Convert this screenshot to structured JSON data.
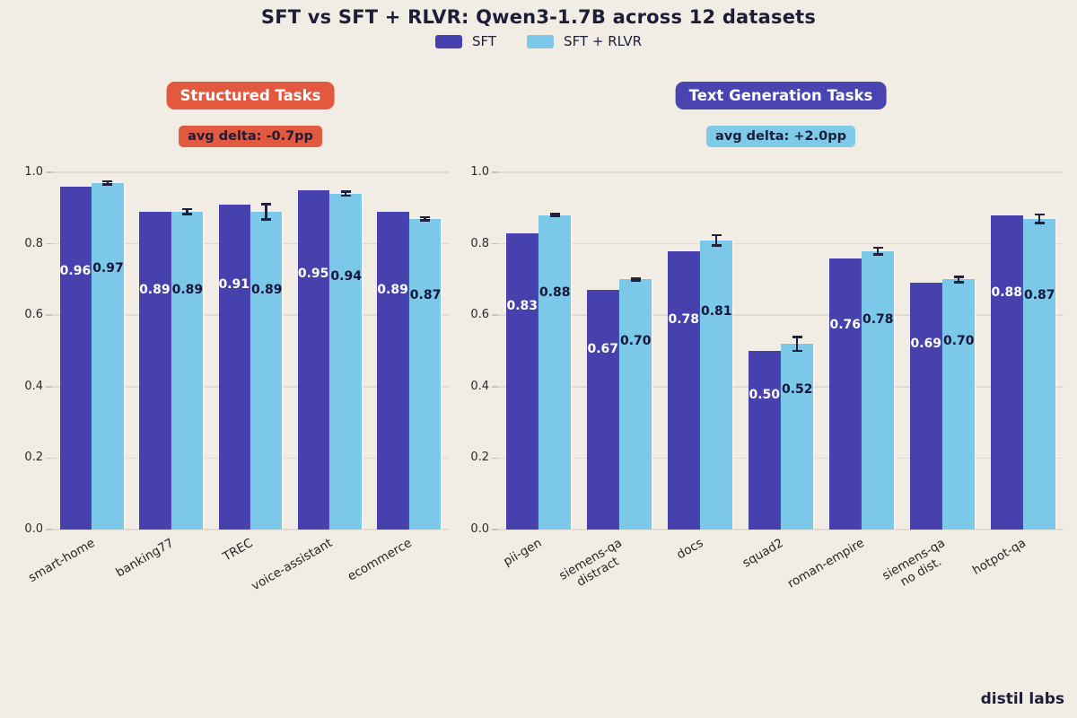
{
  "page": {
    "title": "SFT vs SFT + RLVR: Qwen3-1.7B across 12 datasets",
    "watermark": "distil labs",
    "background": "#f2ede4"
  },
  "legend": {
    "items": [
      {
        "label": "SFT",
        "color": "#4641ad"
      },
      {
        "label": "SFT + RLVR",
        "color": "#7cc8e8"
      }
    ]
  },
  "chart_data": [
    {
      "type": "bar",
      "title": "Structured Tasks",
      "title_bg": "#e2593f",
      "title_color": "#ffffff",
      "delta": {
        "label": "avg delta: -0.7pp",
        "bg": "#e2593f"
      },
      "categories": [
        "smart-home",
        "banking77",
        "TREC",
        "voice-assistant",
        "ecommerce"
      ],
      "series": [
        {
          "name": "SFT",
          "values": [
            0.96,
            0.89,
            0.91,
            0.95,
            0.89
          ]
        },
        {
          "name": "SFT + RLVR",
          "values": [
            0.97,
            0.89,
            0.89,
            0.94,
            0.87
          ],
          "errors": [
            0.005,
            0.008,
            0.022,
            0.006,
            0.005
          ]
        }
      ],
      "ylim": [
        0,
        1.0
      ],
      "yticks": [
        0.0,
        0.2,
        0.4,
        0.6,
        0.8,
        1.0
      ],
      "grid": true,
      "legend_position": "top",
      "xlabel": "",
      "ylabel": ""
    },
    {
      "type": "bar",
      "title": "Text Generation Tasks",
      "title_bg": "#4a44b0",
      "title_color": "#ffffff",
      "delta": {
        "label": "avg delta: +2.0pp",
        "bg": "#7ecae9"
      },
      "categories": [
        "pii-gen",
        "siemens-qa\ndistract",
        "docs",
        "squad2",
        "roman-empire",
        "siemens-qa\nno dist.",
        "hotpot-qa"
      ],
      "series": [
        {
          "name": "SFT",
          "values": [
            0.83,
            0.67,
            0.78,
            0.5,
            0.76,
            0.69,
            0.88
          ]
        },
        {
          "name": "SFT + RLVR",
          "values": [
            0.88,
            0.7,
            0.81,
            0.52,
            0.78,
            0.7,
            0.87
          ],
          "errors": [
            0.004,
            0.004,
            0.015,
            0.02,
            0.01,
            0.008,
            0.012
          ]
        }
      ],
      "ylim": [
        0,
        1.0
      ],
      "yticks": [
        0.0,
        0.2,
        0.4,
        0.6,
        0.8,
        1.0
      ],
      "grid": true,
      "legend_position": "top",
      "xlabel": "",
      "ylabel": ""
    }
  ]
}
